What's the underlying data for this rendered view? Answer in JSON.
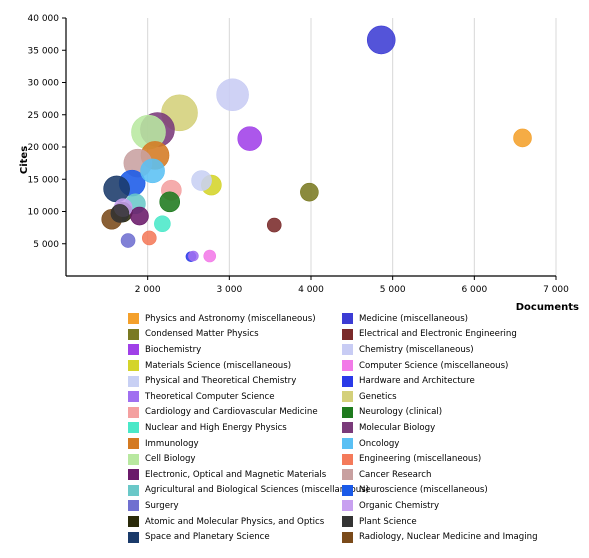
{
  "chart_data": {
    "type": "scatter",
    "xlabel": "Documents",
    "ylabel": "Cites",
    "xlim": [
      1000,
      7000
    ],
    "ylim": [
      0,
      40000
    ],
    "x_ticks": [
      2000,
      3000,
      4000,
      5000,
      6000,
      7000
    ],
    "x_tick_labels": [
      "2 000",
      "3 000",
      "4 000",
      "5 000",
      "6 000",
      "7 000"
    ],
    "y_ticks": [
      5000,
      10000,
      15000,
      20000,
      25000,
      30000,
      35000,
      40000
    ],
    "y_tick_labels": [
      "5 000",
      "10 000",
      "15 000",
      "20 000",
      "25 000",
      "30 000",
      "35 000",
      "40 000"
    ],
    "grid": "vertical",
    "legend_position": "bottom",
    "series": [
      {
        "name": "Physics and Astronomy (miscellaneous)",
        "color": "#F4A02B",
        "x": 6590,
        "y": 21400,
        "size": 9
      },
      {
        "name": "Medicine (miscellaneous)",
        "color": "#3C3CD4",
        "x": 4860,
        "y": 36600,
        "size": 14
      },
      {
        "name": "Condensed Matter Physics",
        "color": "#7A7A22",
        "x": 3980,
        "y": 13000,
        "size": 9
      },
      {
        "name": "Electrical and Electronic Engineering",
        "color": "#7A2A2A",
        "x": 3550,
        "y": 7900,
        "size": 7
      },
      {
        "name": "Biochemistry",
        "color": "#A040E8",
        "x": 3250,
        "y": 21300,
        "size": 12
      },
      {
        "name": "Chemistry (miscellaneous)",
        "color": "#C8CCF4",
        "x": 3040,
        "y": 28100,
        "size": 16
      },
      {
        "name": "Materials Science (miscellaneous)",
        "color": "#D4D42A",
        "x": 2780,
        "y": 14100,
        "size": 10
      },
      {
        "name": "Computer Science (miscellaneous)",
        "color": "#F27AE8",
        "x": 2760,
        "y": 3100,
        "size": 6
      },
      {
        "name": "Physical and Theoretical Chemistry",
        "color": "#C8D0F4",
        "x": 2660,
        "y": 14800,
        "size": 10
      },
      {
        "name": "Hardware and Architecture",
        "color": "#2A3AE8",
        "x": 2530,
        "y": 3000,
        "size": 5
      },
      {
        "name": "Theoretical Computer Science",
        "color": "#A070F0",
        "x": 2560,
        "y": 3100,
        "size": 5
      },
      {
        "name": "Genetics",
        "color": "#D4D07A",
        "x": 2390,
        "y": 25300,
        "size": 18
      },
      {
        "name": "Cardiology and Cardiovascular Medicine",
        "color": "#F4A0A0",
        "x": 2290,
        "y": 13300,
        "size": 10
      },
      {
        "name": "Neurology (clinical)",
        "color": "#1E7A1E",
        "x": 2270,
        "y": 11500,
        "size": 10
      },
      {
        "name": "Nuclear and High Energy Physics",
        "color": "#4AE8C8",
        "x": 2180,
        "y": 8100,
        "size": 8
      },
      {
        "name": "Molecular Biology",
        "color": "#7A3A7A",
        "x": 2120,
        "y": 22700,
        "size": 17
      },
      {
        "name": "Immunology",
        "color": "#D47A22",
        "x": 2090,
        "y": 18700,
        "size": 14
      },
      {
        "name": "Oncology",
        "color": "#5AC0F4",
        "x": 2060,
        "y": 16300,
        "size": 12
      },
      {
        "name": "Cell Biology",
        "color": "#B8E8A0",
        "x": 2010,
        "y": 22300,
        "size": 17
      },
      {
        "name": "Engineering (miscellaneous)",
        "color": "#F47A5A",
        "x": 2020,
        "y": 5900,
        "size": 7
      },
      {
        "name": "Electronic, Optical and Magnetic Materials",
        "color": "#6A1A6A",
        "x": 1900,
        "y": 9300,
        "size": 9
      },
      {
        "name": "Cancer Research",
        "color": "#C8A0A0",
        "x": 1880,
        "y": 17500,
        "size": 14
      },
      {
        "name": "Agricultural and Biological Sciences (miscellaneous)",
        "color": "#6AC8C8",
        "x": 1850,
        "y": 11200,
        "size": 10
      },
      {
        "name": "Neuroscience (miscellaneous)",
        "color": "#1A5AE8",
        "x": 1810,
        "y": 14400,
        "size": 13
      },
      {
        "name": "Surgery",
        "color": "#7070D0",
        "x": 1760,
        "y": 5500,
        "size": 7
      },
      {
        "name": "Organic Chemistry",
        "color": "#C8A0F0",
        "x": 1700,
        "y": 10600,
        "size": 9
      },
      {
        "name": "Atomic and Molecular Physics, and Optics",
        "color": "#2A2A0A",
        "x": 1690,
        "y": 9900,
        "size": 10
      },
      {
        "name": "Plant Science",
        "color": "#333333",
        "x": 1660,
        "y": 9700,
        "size": 9
      },
      {
        "name": "Space and Planetary Science",
        "color": "#1A3A6A",
        "x": 1620,
        "y": 13500,
        "size": 13
      },
      {
        "name": "Radiology, Nuclear Medicine and Imaging",
        "color": "#7A4A1A",
        "x": 1560,
        "y": 8800,
        "size": 10
      }
    ]
  }
}
